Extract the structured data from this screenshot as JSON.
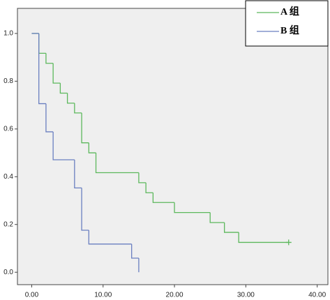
{
  "chart_data": {
    "type": "step",
    "xlim": [
      -2,
      41.5
    ],
    "ylim": [
      -0.052,
      1.105
    ],
    "xticks": [
      {
        "value": 0,
        "label": "0.00"
      },
      {
        "value": 10,
        "label": "10.00"
      },
      {
        "value": 20,
        "label": "20.00"
      },
      {
        "value": 30,
        "label": "30.00"
      },
      {
        "value": 40,
        "label": "40.00"
      }
    ],
    "yticks": [
      {
        "value": 0,
        "label": "0.0"
      },
      {
        "value": 0.2,
        "label": "0.2"
      },
      {
        "value": 0.4,
        "label": "0.4"
      },
      {
        "value": 0.6,
        "label": "0.6"
      },
      {
        "value": 0.8,
        "label": "0.8"
      },
      {
        "value": 1,
        "label": "1.0"
      }
    ],
    "legend": "top-right",
    "series": [
      {
        "name": "A 组",
        "color": "#5cb85c",
        "censored_end": true,
        "x": [
          0,
          1,
          2,
          3,
          4,
          5,
          6,
          7,
          8,
          9,
          15,
          16,
          17,
          20,
          25,
          27,
          29,
          36
        ],
        "values": [
          1,
          0.917,
          0.875,
          0.792,
          0.75,
          0.708,
          0.667,
          0.542,
          0.5,
          0.417,
          0.375,
          0.333,
          0.292,
          0.25,
          0.208,
          0.167,
          0.125,
          0.125
        ]
      },
      {
        "name": "B 组",
        "color": "#6a7fc0",
        "censored_end": false,
        "x": [
          0,
          1,
          2,
          3,
          6,
          7,
          8,
          14,
          15
        ],
        "values": [
          1,
          0.706,
          0.588,
          0.471,
          0.353,
          0.176,
          0.118,
          0.059,
          0
        ]
      }
    ]
  }
}
